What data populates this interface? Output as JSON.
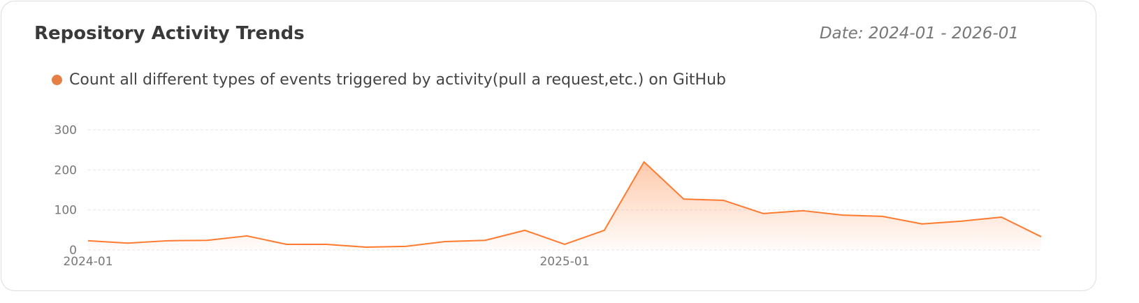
{
  "header": {
    "title": "Repository Activity Trends",
    "date_range": "Date: 2024-01 - 2026-01"
  },
  "colors": {
    "line": "#ff7a2f",
    "legend_dot": "#e57f45"
  },
  "chart_data": {
    "type": "area",
    "title": "",
    "legend": [
      {
        "name": "Count all different types of events triggered by activity(pull a request,etc.) on GitHub",
        "position": "top-left"
      }
    ],
    "x": [
      "2024-01",
      "2024-02",
      "2024-03",
      "2024-04",
      "2024-05",
      "2024-06",
      "2024-07",
      "2024-08",
      "2024-09",
      "2024-10",
      "2024-11",
      "2024-12",
      "2025-01",
      "2025-02",
      "2025-03",
      "2025-04",
      "2025-05",
      "2025-06",
      "2025-07",
      "2025-08",
      "2025-09",
      "2025-10",
      "2025-11",
      "2025-12",
      "2026-01"
    ],
    "series": [
      {
        "name": "Count all different types of events triggered by activity(pull a request,etc.) on GitHub",
        "values": [
          23,
          17,
          23,
          24,
          35,
          14,
          14,
          7,
          9,
          21,
          24,
          49,
          14,
          49,
          220,
          127,
          124,
          91,
          98,
          87,
          84,
          65,
          72,
          82,
          33
        ]
      }
    ],
    "x_tick_labels": [
      "2024-01",
      "2025-01"
    ],
    "y_ticks": [
      0,
      100,
      200,
      300
    ],
    "ylim": [
      0,
      300
    ],
    "grid": true
  }
}
